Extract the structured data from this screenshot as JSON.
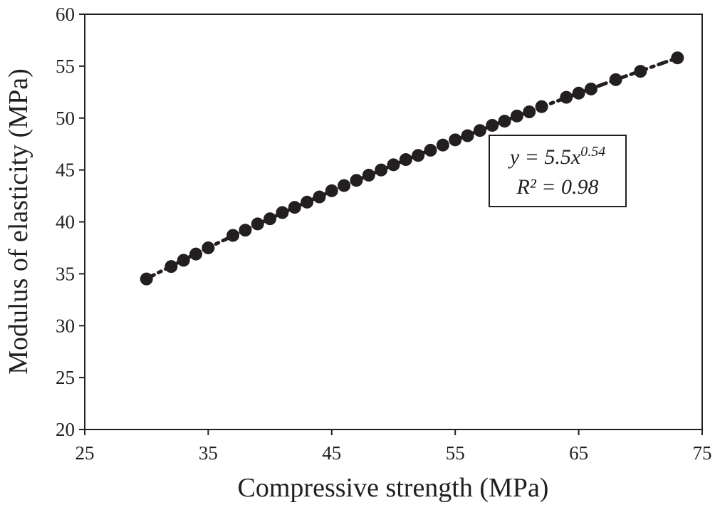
{
  "chart_data": {
    "type": "scatter",
    "xlabel": "Compressive strength (MPa)",
    "ylabel": "Modulus of elasticity (MPa)",
    "xlim": [
      25,
      75
    ],
    "ylim": [
      20,
      60
    ],
    "x_ticks": [
      "25",
      "35",
      "45",
      "55",
      "65",
      "75"
    ],
    "y_ticks": [
      "20",
      "25",
      "30",
      "35",
      "40",
      "45",
      "50",
      "55",
      "60"
    ],
    "grid": false,
    "marker_color": "#231f20",
    "trendline": {
      "type": "power",
      "coefficient": 5.5,
      "exponent": 0.54,
      "style": "dash-dot",
      "equation_prefix": "y = 5.5x",
      "equation_exponent": "0.54",
      "r_squared": "R² = 0.98"
    },
    "series": [
      {
        "x": [
          30,
          32,
          33,
          34,
          35,
          37,
          38,
          39,
          40,
          41,
          42,
          43,
          44,
          45,
          46,
          47,
          48,
          49,
          50,
          51,
          52,
          53,
          54,
          55,
          56,
          57,
          58,
          59,
          60,
          61,
          62,
          64,
          65,
          66,
          68,
          70,
          73
        ],
        "y": [
          34.5,
          35.7,
          36.3,
          36.9,
          37.5,
          38.7,
          39.2,
          39.8,
          40.3,
          40.9,
          41.4,
          41.9,
          42.4,
          43.0,
          43.5,
          44.0,
          44.5,
          45.0,
          45.5,
          46.0,
          46.4,
          46.9,
          47.4,
          47.9,
          48.3,
          48.8,
          49.3,
          49.7,
          50.2,
          50.6,
          51.1,
          52.0,
          52.4,
          52.8,
          53.7,
          54.5,
          55.8
        ]
      }
    ]
  }
}
